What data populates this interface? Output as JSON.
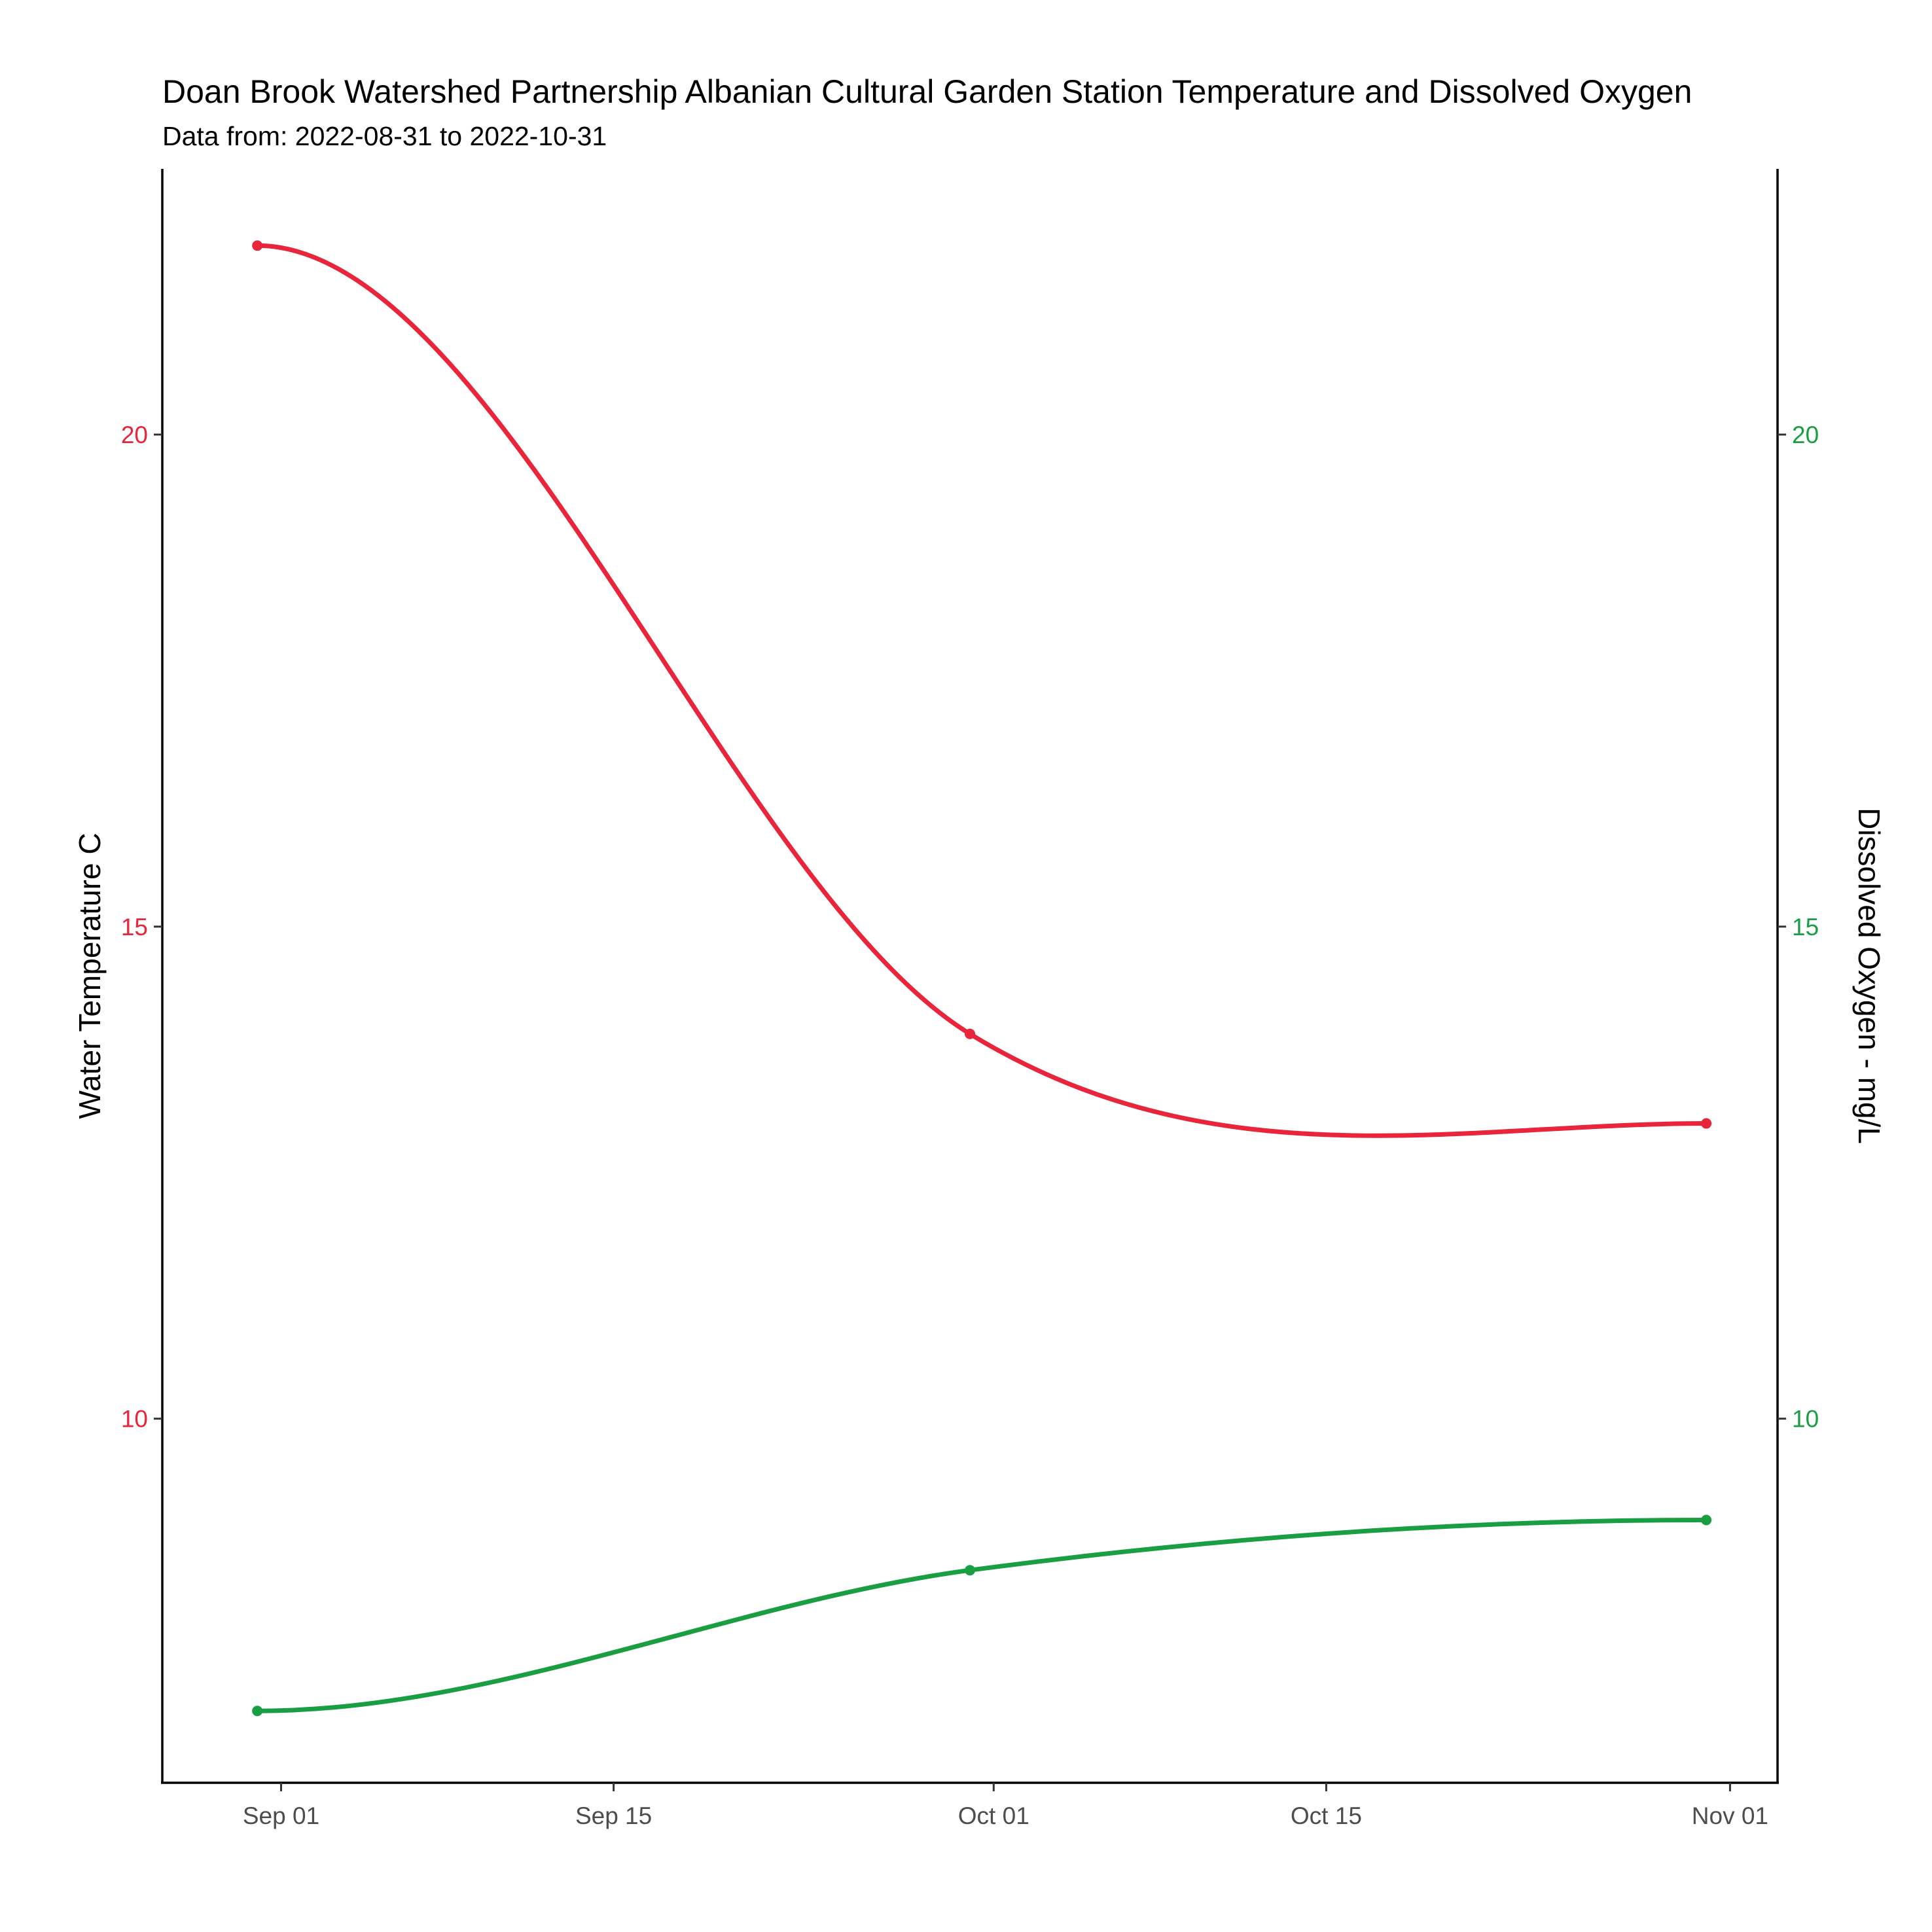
{
  "chart_data": {
    "type": "line",
    "title": "Doan Brook Watershed Partnership Albanian Cultural Garden Station Temperature and Dissolved Oxygen",
    "subtitle": "Data from: 2022-08-31 to 2022-10-31",
    "x": [
      "2022-08-31",
      "2022-09-30",
      "2022-10-31"
    ],
    "x_ticks": [
      {
        "date": "2022-09-01",
        "label": "Sep 01"
      },
      {
        "date": "2022-09-15",
        "label": "Sep 15"
      },
      {
        "date": "2022-10-01",
        "label": "Oct 01"
      },
      {
        "date": "2022-10-15",
        "label": "Oct 15"
      },
      {
        "date": "2022-11-01",
        "label": "Nov 01"
      }
    ],
    "xlim": [
      "2022-08-27",
      "2022-11-03"
    ],
    "ylim": [
      6.3,
      22.7
    ],
    "y_left": {
      "label": "Water Temperature C",
      "ticks": [
        "10",
        "15",
        "20"
      ],
      "color": "#e8253a"
    },
    "y_right": {
      "label": "Dissolved Oxygen - mg/L",
      "ticks": [
        "10",
        "15",
        "20"
      ],
      "color": "#1a9e42"
    },
    "series": [
      {
        "values": [
          21.92,
          13.91,
          13.0
        ],
        "axis": "left",
        "color": "#e8253a"
      },
      {
        "values": [
          7.03,
          8.46,
          8.97
        ],
        "axis": "right",
        "color": "#1a9e42"
      }
    ],
    "grid": false,
    "smoothed": true
  }
}
